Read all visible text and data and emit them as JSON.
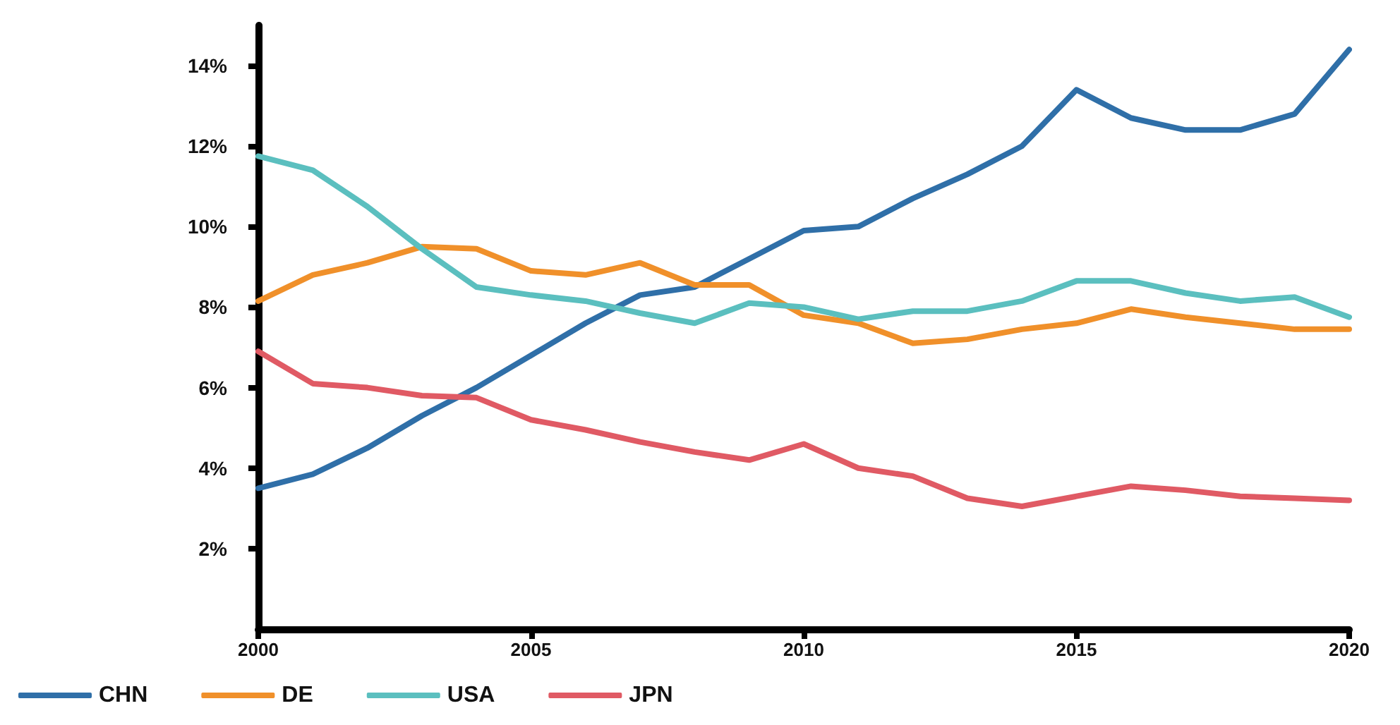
{
  "chart_data": {
    "type": "line",
    "x": [
      2000,
      2001,
      2002,
      2003,
      2004,
      2005,
      2006,
      2007,
      2008,
      2009,
      2010,
      2011,
      2012,
      2013,
      2014,
      2015,
      2016,
      2017,
      2018,
      2019,
      2020
    ],
    "series": [
      {
        "name": "CHN",
        "color": "#2f6fa8",
        "values": [
          3.5,
          3.85,
          4.5,
          5.3,
          6.0,
          6.8,
          7.6,
          8.3,
          8.5,
          9.2,
          9.9,
          10.0,
          10.7,
          11.3,
          12.0,
          13.4,
          12.7,
          12.4,
          12.4,
          12.8,
          14.4
        ]
      },
      {
        "name": "DE",
        "color": "#f0902a",
        "values": [
          8.15,
          8.8,
          9.1,
          9.5,
          9.45,
          8.9,
          8.8,
          9.1,
          8.55,
          8.55,
          7.8,
          7.6,
          7.1,
          7.2,
          7.45,
          7.6,
          7.95,
          7.75,
          7.6,
          7.45,
          7.45
        ]
      },
      {
        "name": "USA",
        "color": "#5bbfbf",
        "values": [
          11.75,
          11.4,
          10.5,
          9.45,
          8.5,
          8.3,
          8.15,
          7.85,
          7.6,
          8.1,
          8.0,
          7.7,
          7.9,
          7.9,
          8.15,
          8.65,
          8.65,
          8.35,
          8.15,
          8.25,
          7.75
        ]
      },
      {
        "name": "JPN",
        "color": "#e05a64",
        "values": [
          6.9,
          6.1,
          6.0,
          5.8,
          5.75,
          5.2,
          4.95,
          4.65,
          4.4,
          4.2,
          4.6,
          4.0,
          3.8,
          3.25,
          3.05,
          3.3,
          3.55,
          3.45,
          3.3,
          3.25,
          3.2
        ]
      }
    ],
    "xlim": [
      2000,
      2020
    ],
    "xticks": [
      2000,
      2005,
      2010,
      2015,
      2020
    ],
    "ylim": [
      0,
      15
    ],
    "yticks": [
      {
        "value": 2,
        "label": "2%"
      },
      {
        "value": 4,
        "label": "4%"
      },
      {
        "value": 6,
        "label": "6%"
      },
      {
        "value": 8,
        "label": "8%"
      },
      {
        "value": 10,
        "label": "10%"
      },
      {
        "value": 12,
        "label": "12%"
      },
      {
        "value": 14,
        "label": "14%"
      }
    ],
    "grid": false,
    "legend": "bottom left",
    "marker": "none",
    "line_style": "solid"
  }
}
